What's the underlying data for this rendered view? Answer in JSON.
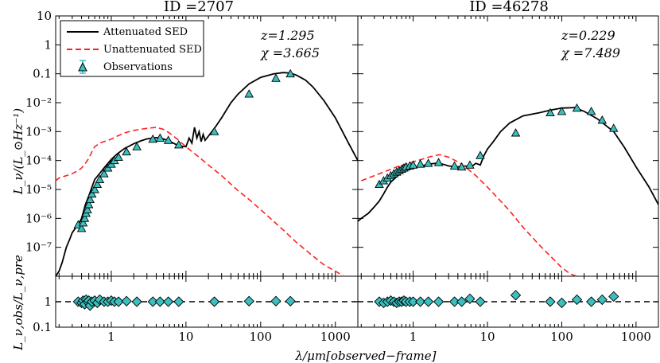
{
  "figure": {
    "ylabel_top": "L_ν/(L_⊙Hz⁻¹)",
    "ylabel_bottom": "L_ν,obs/L_ν,pre",
    "xlabel": "λ/μm[observed−frame]",
    "colors": {
      "attenuated": "#000000",
      "unattenuated": "#ff2020",
      "observations_fill": "#3bbfbf",
      "observations_edge": "#000000"
    },
    "legend": {
      "placement": "top-left of left panel",
      "entries": [
        {
          "label": "Attenuated SED",
          "style": "black solid line"
        },
        {
          "label": "Unattenuated SED",
          "style": "red dashed line"
        },
        {
          "label": "Observations",
          "style": "cyan triangle with error bar"
        }
      ]
    }
  },
  "chart_data": [
    {
      "type": "line",
      "title": "ID =2707",
      "annotation": {
        "z_text": "z=1.295",
        "chi_text": "χ  =3.665"
      },
      "x_scale": "log",
      "y_scale": "log",
      "xlim": [
        0.18,
        2000
      ],
      "ylim": [
        1e-08,
        10
      ],
      "ratio_ylim": [
        0.1,
        10
      ],
      "yticks": [
        {
          "v": 1e-07,
          "l": "10⁻⁷"
        },
        {
          "v": 1e-06,
          "l": "10⁻⁶"
        },
        {
          "v": 1e-05,
          "l": "10⁻⁵"
        },
        {
          "v": 0.0001,
          "l": "10⁻⁴"
        },
        {
          "v": 0.001,
          "l": "10⁻³"
        },
        {
          "v": 0.01,
          "l": "10⁻²"
        },
        {
          "v": 0.1,
          "l": "0.1"
        },
        {
          "v": 1,
          "l": "1"
        },
        {
          "v": 10,
          "l": "10"
        }
      ],
      "ratio_yticks": [
        {
          "v": 0.1,
          "l": "0.1"
        },
        {
          "v": 1,
          "l": "1"
        }
      ],
      "xticks": [
        {
          "v": 1,
          "l": "1"
        },
        {
          "v": 10,
          "l": "10"
        },
        {
          "v": 100,
          "l": "100"
        },
        {
          "v": 1000,
          "l": "1000"
        }
      ],
      "series": [
        {
          "name": "Attenuated SED",
          "kind": "line",
          "x": [
            0.18,
            0.2,
            0.22,
            0.25,
            0.28,
            0.3,
            0.33,
            0.36,
            0.4,
            0.45,
            0.5,
            0.55,
            0.6,
            0.7,
            0.8,
            0.9,
            1.0,
            1.2,
            1.5,
            2,
            2.5,
            3,
            4,
            5,
            6,
            8,
            10,
            11,
            12,
            13,
            14,
            15,
            16,
            17,
            18,
            20,
            25,
            30,
            40,
            50,
            70,
            100,
            150,
            200,
            250,
            300,
            400,
            500,
            700,
            1000,
            1500,
            2000
          ],
          "y": [
            1e-08,
            1.5e-08,
            3e-08,
            1e-07,
            2e-07,
            3.2e-07,
            4.5e-07,
            6e-07,
            1e-06,
            3e-06,
            6e-06,
            1.2e-05,
            2.2e-05,
            3.6e-05,
            5.5e-05,
            8e-05,
            0.00011,
            0.00017,
            0.00026,
            0.00038,
            0.00048,
            0.00056,
            0.00062,
            0.00056,
            0.00047,
            0.00032,
            0.0003,
            0.0006,
            0.0004,
            0.0014,
            0.0006,
            0.001,
            0.00045,
            0.0008,
            0.0005,
            0.0007,
            0.0015,
            0.003,
            0.01,
            0.02,
            0.045,
            0.075,
            0.1,
            0.11,
            0.105,
            0.09,
            0.06,
            0.035,
            0.012,
            0.003,
            0.0004,
            0.0001
          ]
        },
        {
          "name": "Unattenuated SED",
          "kind": "line",
          "x": [
            0.18,
            0.2,
            0.25,
            0.3,
            0.33,
            0.36,
            0.4,
            0.45,
            0.5,
            0.55,
            0.6,
            0.7,
            0.8,
            0.9,
            1.0,
            1.2,
            1.5,
            2,
            3,
            4,
            5,
            6,
            8,
            10,
            15,
            20,
            30,
            50,
            70,
            100,
            200,
            300,
            500,
            700,
            1000,
            1300
          ],
          "y": [
            2e-05,
            2.5e-05,
            3e-05,
            3.5e-05,
            4e-05,
            4.5e-05,
            5.5e-05,
            8e-05,
            0.00012,
            0.0002,
            0.0003,
            0.0004,
            0.00045,
            0.0005,
            0.00055,
            0.0007,
            0.0009,
            0.0011,
            0.0013,
            0.0014,
            0.0012,
            0.0009,
            0.0005,
            0.0003,
            0.00013,
            7e-05,
            3e-05,
            9e-06,
            4.5e-06,
            2e-06,
            4e-07,
            1.5e-07,
            5e-08,
            2.5e-08,
            1.5e-08,
            1e-08
          ]
        },
        {
          "name": "Observations",
          "kind": "points",
          "x": [
            0.36,
            0.4,
            0.42,
            0.44,
            0.46,
            0.48,
            0.5,
            0.52,
            0.55,
            0.6,
            0.65,
            0.7,
            0.8,
            0.9,
            1.0,
            1.1,
            1.25,
            1.6,
            2.2,
            3.6,
            4.5,
            5.8,
            8.0,
            24,
            70,
            160,
            250
          ],
          "y": [
            6e-07,
            4.5e-07,
            7e-07,
            1e-06,
            1.5e-06,
            2e-06,
            3e-06,
            4.5e-06,
            7e-06,
            1e-05,
            1.5e-05,
            2.2e-05,
            3.5e-05,
            5.5e-05,
            7.5e-05,
            0.0001,
            0.00013,
            0.0002,
            0.0003,
            0.00055,
            0.0006,
            0.0005,
            0.00035,
            0.001,
            0.02,
            0.07,
            0.1
          ],
          "ratio": [
            1,
            0.9,
            1.1,
            0.8,
            1.2,
            1,
            1.1,
            0.7,
            1,
            1.1,
            0.9,
            1.2,
            1,
            1,
            1.1,
            1,
            1,
            1.05,
            1,
            1,
            1,
            1,
            1,
            1,
            1.05,
            1.05,
            1.05
          ]
        }
      ]
    },
    {
      "type": "line",
      "title": "ID =46278",
      "annotation": {
        "z_text": "z=0.229",
        "chi_text": "χ  =7.489"
      },
      "x_scale": "log",
      "y_scale": "log",
      "xlim": [
        0.18,
        2000
      ],
      "ylim": [
        1e-08,
        10
      ],
      "ratio_ylim": [
        0.1,
        10
      ],
      "xticks": [
        {
          "v": 1,
          "l": "1"
        },
        {
          "v": 10,
          "l": "10"
        },
        {
          "v": 100,
          "l": "100"
        },
        {
          "v": 1000,
          "l": "1000"
        }
      ],
      "series": [
        {
          "name": "Attenuated SED",
          "kind": "line",
          "x": [
            0.18,
            0.2,
            0.25,
            0.3,
            0.35,
            0.4,
            0.45,
            0.5,
            0.6,
            0.7,
            0.8,
            1.0,
            1.3,
            1.6,
            2,
            2.5,
            3,
            4,
            5,
            6,
            7,
            8,
            9,
            10,
            12,
            15,
            20,
            30,
            50,
            70,
            100,
            150,
            200,
            300,
            500,
            700,
            1000,
            1500,
            2000
          ],
          "y": [
            8e-07,
            1e-06,
            1.5e-06,
            2.5e-06,
            4e-06,
            7e-06,
            1.2e-05,
            1.8e-05,
            2.8e-05,
            3.8e-05,
            4.5e-05,
            5.5e-05,
            6.5e-05,
            7.5e-05,
            8e-05,
            7.5e-05,
            6.5e-05,
            6e-05,
            6.5e-05,
            6e-05,
            8e-05,
            7e-05,
            0.00015,
            0.00025,
            0.00045,
            0.001,
            0.002,
            0.0035,
            0.0045,
            0.0055,
            0.0065,
            0.0068,
            0.005,
            0.0028,
            0.001,
            0.00028,
            6e-05,
            1.2e-05,
            3e-06
          ]
        },
        {
          "name": "Unattenuated SED",
          "kind": "line",
          "x": [
            0.2,
            0.25,
            0.3,
            0.35,
            0.4,
            0.5,
            0.6,
            0.8,
            1.0,
            1.3,
            1.6,
            2,
            2.3,
            3,
            4,
            5,
            7,
            10,
            15,
            20,
            30,
            50,
            70,
            100,
            130,
            160
          ],
          "y": [
            2e-05,
            2.5e-05,
            3e-05,
            3.5e-05,
            4e-05,
            5e-05,
            6e-05,
            7.5e-05,
            9e-05,
            0.00011,
            0.00013,
            0.00015,
            0.00016,
            0.00013,
            9e-05,
            6e-05,
            3e-05,
            1.2e-05,
            4e-06,
            1.8e-06,
            5e-07,
            1.2e-07,
            5e-08,
            2e-08,
            1.2e-08,
            1e-08
          ]
        },
        {
          "name": "Observations",
          "kind": "points",
          "x": [
            0.35,
            0.4,
            0.45,
            0.5,
            0.55,
            0.6,
            0.65,
            0.7,
            0.75,
            0.8,
            0.9,
            1.0,
            1.25,
            1.6,
            2.2,
            3.6,
            4.5,
            5.8,
            8.0,
            24,
            70,
            100,
            160,
            250,
            350,
            500
          ],
          "y": [
            1.5e-05,
            2e-05,
            2.5e-05,
            3e-05,
            3.5e-05,
            4e-05,
            4.5e-05,
            5e-05,
            5.5e-05,
            6e-05,
            6.5e-05,
            7e-05,
            7.5e-05,
            8e-05,
            8.5e-05,
            6.5e-05,
            6e-05,
            7e-05,
            0.00015,
            0.0009,
            0.0045,
            0.005,
            0.0065,
            0.005,
            0.0025,
            0.0013
          ],
          "ratio": [
            1,
            0.9,
            1,
            1.1,
            1,
            0.9,
            1,
            1,
            1.1,
            1,
            1,
            1,
            1,
            1,
            1,
            1,
            1,
            1.3,
            1,
            1.8,
            1,
            0.9,
            1.2,
            1,
            1.2,
            1.6
          ]
        }
      ]
    }
  ]
}
